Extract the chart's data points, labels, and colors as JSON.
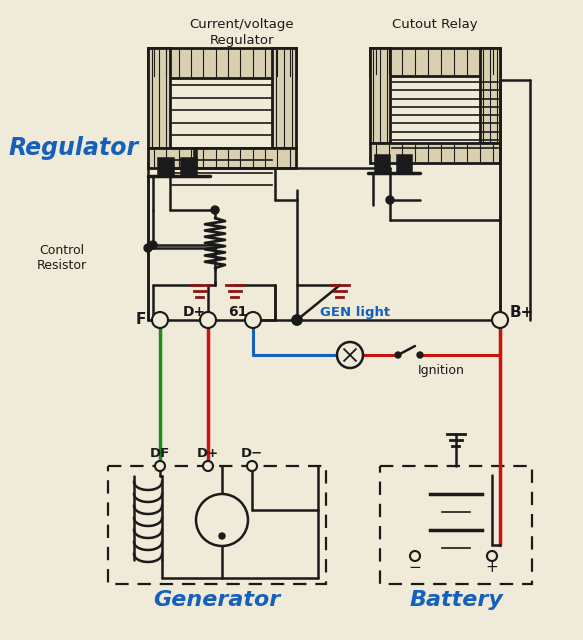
{
  "bg_color": "#f0ead8",
  "blue": "#1560bd",
  "red": "#cc1111",
  "green": "#1a8c1a",
  "dark": "#1a1a1a",
  "dkred": "#8B1414",
  "lbl_cv": "Current/voltage\nRegulator",
  "lbl_co": "Cutout Relay",
  "lbl_reg": "Regulator",
  "lbl_ctrl": "Control\nResistor",
  "lbl_gen": "Generator",
  "lbl_bat": "Battery",
  "lbl_genl": "GEN light",
  "lbl_ign": "Ignition",
  "lbl_F": "F",
  "lbl_Dp": "D+",
  "lbl_61": "61",
  "lbl_Bp": "B+",
  "lbl_DF": "DF",
  "lbl_Dm": "D−"
}
